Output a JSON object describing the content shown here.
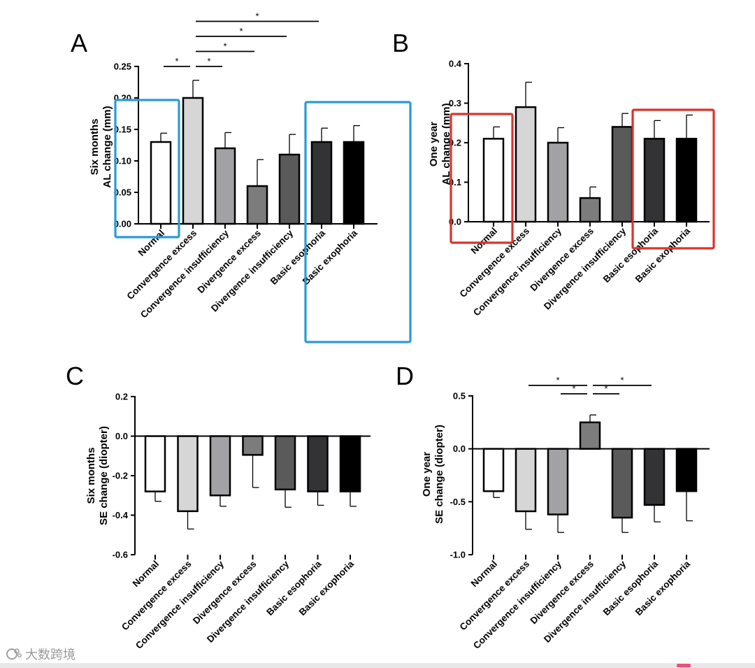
{
  "chart_data": [
    {
      "type": "bar",
      "panel": "A",
      "ylabel_lines": [
        "Six months",
        "AL change (mm)"
      ],
      "ylim": [
        0,
        0.25
      ],
      "yticks": [
        "0.00",
        "0.05",
        "0.10",
        "0.15",
        "0.20",
        "0.25"
      ],
      "categories": [
        "Normal",
        "Convergence excess",
        "Convergence insufficiency",
        "Divergence excess",
        "Divergence insufficiency",
        "Basic esophoria",
        "Basic exophoria"
      ],
      "values": [
        0.13,
        0.2,
        0.12,
        0.06,
        0.11,
        0.13,
        0.13
      ],
      "errors": [
        0.014,
        0.028,
        0.025,
        0.042,
        0.032,
        0.022,
        0.026
      ],
      "significance": [
        {
          "from": 0,
          "to": 1,
          "label": "*"
        },
        {
          "from": 1,
          "to": 2,
          "label": "*"
        },
        {
          "from": 1,
          "to": 3,
          "label": "*"
        },
        {
          "from": 1,
          "to": 4,
          "label": "*"
        },
        {
          "from": 1,
          "to": 5,
          "label": "*"
        }
      ],
      "highlight_boxes": [
        {
          "color": "#2a9ad8",
          "from": 0,
          "to": 0
        },
        {
          "color": "#2a9ad8",
          "from": 5,
          "to": 6
        }
      ]
    },
    {
      "type": "bar",
      "panel": "B",
      "ylabel_lines": [
        "One year",
        "AL change (mm)"
      ],
      "ylim": [
        0,
        0.4
      ],
      "yticks": [
        "0.0",
        "0.1",
        "0.2",
        "0.3",
        "0.4"
      ],
      "categories": [
        "Normal",
        "Convergence excess",
        "Convergence insufficiency",
        "Divergence excess",
        "Divergence insufficiency",
        "Basic esophoria",
        "Basic exophoria"
      ],
      "values": [
        0.21,
        0.29,
        0.2,
        0.06,
        0.24,
        0.21,
        0.21
      ],
      "errors": [
        0.03,
        0.063,
        0.038,
        0.028,
        0.034,
        0.046,
        0.06
      ],
      "significance": [],
      "highlight_boxes": [
        {
          "color": "#d8342c",
          "from": 0,
          "to": 0
        },
        {
          "color": "#d8342c",
          "from": 5,
          "to": 6
        }
      ]
    },
    {
      "type": "bar",
      "panel": "C",
      "ylabel_lines": [
        "Six months",
        "SE change (diopter)"
      ],
      "ylim": [
        -0.6,
        0.2
      ],
      "yticks": [
        "-0.6",
        "-0.4",
        "-0.2",
        "0.0",
        "0.2"
      ],
      "categories": [
        "Normal",
        "Convergence excess",
        "Convergence insufficiency",
        "Divergence excess",
        "Divergence insufficiency",
        "Basic esophoria",
        "Basic exophoria"
      ],
      "values": [
        -0.28,
        -0.38,
        -0.3,
        -0.095,
        -0.27,
        -0.28,
        -0.28
      ],
      "errors": [
        0.05,
        0.09,
        0.055,
        0.165,
        0.09,
        0.07,
        0.075
      ],
      "significance": [],
      "highlight_boxes": []
    },
    {
      "type": "bar",
      "panel": "D",
      "ylabel_lines": [
        "One year",
        "SE change (diopter)"
      ],
      "ylim": [
        -1.0,
        0.5
      ],
      "yticks": [
        "-1.0",
        "-0.5",
        "0.0",
        "0.5"
      ],
      "categories": [
        "Normal",
        "Convergence excess",
        "Convergence insufficiency",
        "Divergence excess",
        "Divergence insufficiency",
        "Basic esophoria",
        "Basic exophoria"
      ],
      "values": [
        -0.4,
        -0.59,
        -0.62,
        0.25,
        -0.65,
        -0.53,
        -0.4
      ],
      "errors": [
        0.06,
        0.17,
        0.17,
        0.07,
        0.14,
        0.16,
        0.28
      ],
      "significance": [
        {
          "from": 1,
          "to": 3,
          "label": "*"
        },
        {
          "from": 2,
          "to": 3,
          "label": "*"
        },
        {
          "from": 3,
          "to": 4,
          "label": "*"
        },
        {
          "from": 3,
          "to": 5,
          "label": "*"
        }
      ],
      "highlight_boxes": []
    }
  ],
  "bar_colors": [
    "#ffffff",
    "#d6d6d6",
    "#a2a2a6",
    "#7c7c7c",
    "#5a5a5a",
    "#333336",
    "#000000"
  ],
  "watermark": {
    "icon": "logo-icon",
    "text": "大数跨境"
  }
}
